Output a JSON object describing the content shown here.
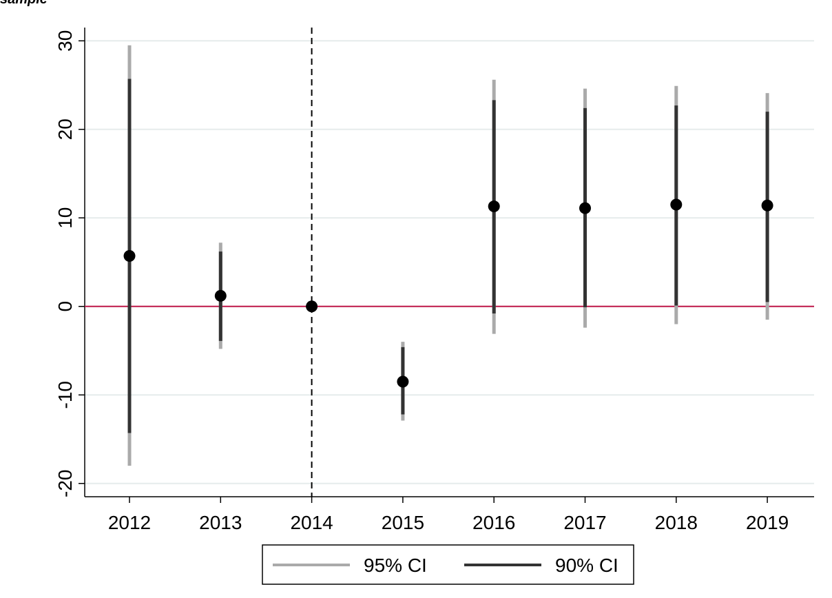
{
  "heading": "sample",
  "chart_data": {
    "type": "scatter",
    "title": "",
    "xlabel": "",
    "ylabel": "",
    "categories": [
      "2012",
      "2013",
      "2014",
      "2015",
      "2016",
      "2017",
      "2018",
      "2019"
    ],
    "estimates": [
      5.7,
      1.2,
      0.0,
      -8.5,
      11.3,
      11.1,
      11.5,
      11.4
    ],
    "series": [
      {
        "name": "95% CI",
        "low": [
          -18.0,
          -4.8,
          0.0,
          -12.9,
          -3.1,
          -2.4,
          -2.0,
          -1.5
        ],
        "high": [
          29.5,
          7.2,
          0.0,
          -4.0,
          25.6,
          24.6,
          24.9,
          24.1
        ]
      },
      {
        "name": "90% CI",
        "low": [
          -14.3,
          -3.9,
          0.0,
          -12.2,
          -0.8,
          -0.1,
          0.1,
          0.5
        ],
        "high": [
          25.7,
          6.2,
          0.0,
          -4.6,
          23.3,
          22.4,
          22.7,
          22.0
        ]
      }
    ],
    "yticks": [
      "30",
      "20",
      "10",
      "0",
      "-10",
      "-20"
    ],
    "ylim": [
      -21.5,
      31.5
    ],
    "reference_line_y": 0,
    "event_line_x": "2014",
    "grid": true,
    "legend_position": "bottom-center",
    "colors": {
      "ci95": "#aaaaaa",
      "ci90": "#333333",
      "point": "#000000",
      "zero_line": "#c0184a",
      "grid": "#e6ecec",
      "event_line": "#000000"
    }
  }
}
